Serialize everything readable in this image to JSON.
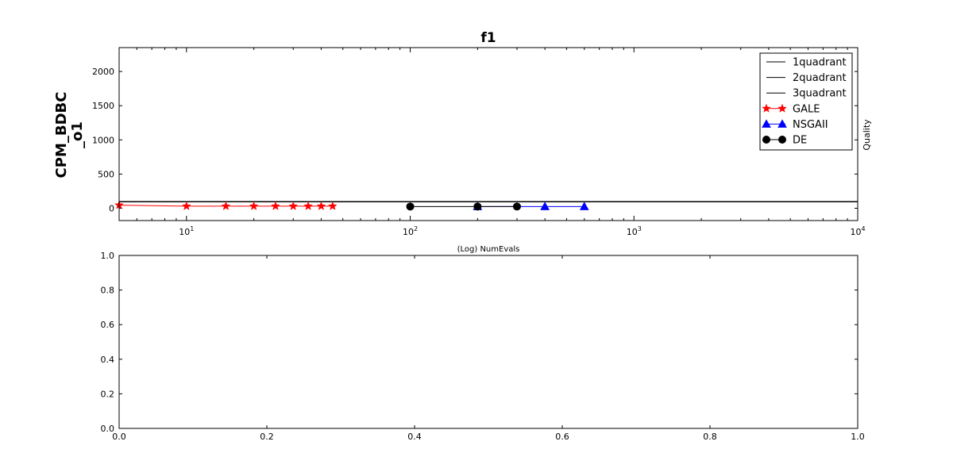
{
  "chart_data": [
    {
      "type": "line",
      "title": "f1",
      "xlabel": "(Log) NumEvals",
      "ylabel": "CPM_BDBC\n_o1",
      "right_label": "Quality",
      "xscale": "log",
      "xlim": [
        5,
        10000
      ],
      "ylim": [
        -180,
        2350
      ],
      "grid": false,
      "legend_position": "top-right",
      "x_ticks": [
        {
          "value": 10,
          "base": "10",
          "exp": "1"
        },
        {
          "value": 100,
          "base": "10",
          "exp": "2"
        },
        {
          "value": 1000,
          "base": "10",
          "exp": "3"
        },
        {
          "value": 10000,
          "base": "10",
          "exp": "4"
        }
      ],
      "y_ticks": [
        "0",
        "500",
        "1000",
        "1500",
        "2000"
      ],
      "series": [
        {
          "name": "1quadrant",
          "color": "#000000",
          "marker": "none",
          "style": "hline",
          "x": [
            5,
            10000
          ],
          "y": [
            95,
            95
          ]
        },
        {
          "name": "2quadrant",
          "color": "#000000",
          "marker": "none",
          "style": "hline",
          "x": [
            5,
            10000
          ],
          "y": [
            95,
            95
          ]
        },
        {
          "name": "3quadrant",
          "color": "#000000",
          "marker": "none",
          "style": "hline",
          "x": [
            5,
            10000
          ],
          "y": [
            95,
            95
          ]
        },
        {
          "name": "GALE",
          "color": "#ff0000",
          "marker": "star",
          "x": [
            5,
            10,
            15,
            20,
            25,
            30,
            35,
            40,
            45
          ],
          "y": [
            45,
            30,
            30,
            30,
            30,
            30,
            30,
            30,
            30
          ]
        },
        {
          "name": "NSGAII",
          "color": "#0000ff",
          "marker": "triangle",
          "x": [
            200,
            400,
            600
          ],
          "y": [
            25,
            25,
            25
          ]
        },
        {
          "name": "DE",
          "color": "#000000",
          "marker": "circle",
          "x": [
            100,
            200,
            300
          ],
          "y": [
            25,
            25,
            25
          ]
        }
      ]
    },
    {
      "type": "line",
      "title": "",
      "xlim": [
        0,
        1
      ],
      "ylim": [
        0,
        1
      ],
      "grid": false,
      "x_ticks": [
        "0.0",
        "0.2",
        "0.4",
        "0.6",
        "0.8",
        "1.0"
      ],
      "y_ticks": [
        "0.0",
        "0.2",
        "0.4",
        "0.6",
        "0.8",
        "1.0"
      ],
      "series": []
    }
  ]
}
